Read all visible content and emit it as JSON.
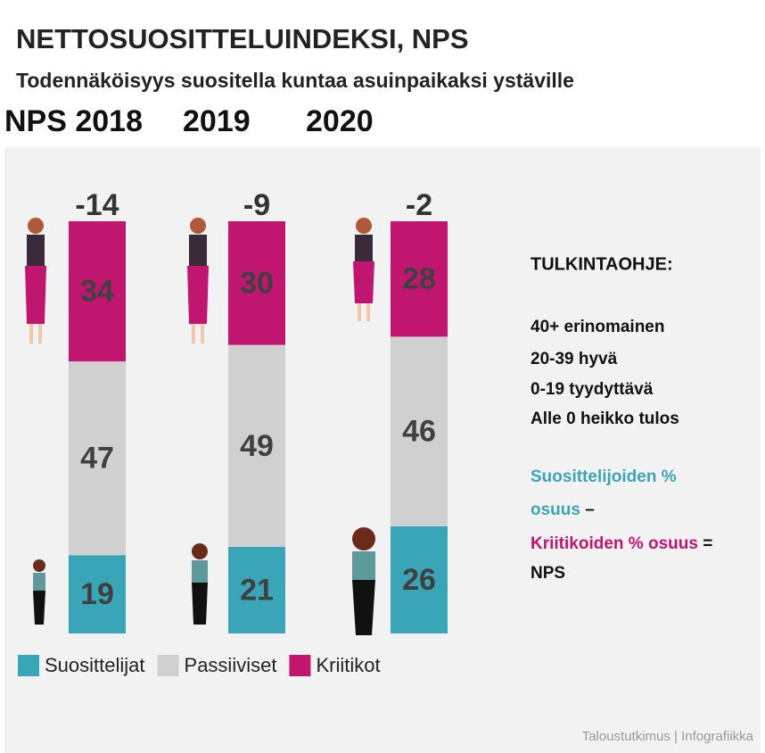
{
  "chart_data": {
    "type": "stacked_bar",
    "title": "NETTOSUOSITTELUINDEKSI, NPS",
    "subtitle": "Todennäköisyys suositella kuntaa asuinpaikaksi ystäville",
    "categories": [
      "NPS 2018",
      "2019",
      "2020"
    ],
    "series": [
      {
        "name": "Suosittelijat",
        "color": "#3ba5b8",
        "values": [
          19,
          21,
          26
        ]
      },
      {
        "name": "Passiiviset",
        "color": "#d0d0d0",
        "values": [
          47,
          49,
          46
        ]
      },
      {
        "name": "Kriitikot",
        "color": "#c0166f",
        "values": [
          34,
          30,
          28
        ]
      }
    ],
    "nps": [
      -14,
      -9,
      -2
    ],
    "ylim": [
      0,
      100
    ],
    "legend": "bottom-left"
  },
  "guide": {
    "title": "TULKINTAOHJE:",
    "scale": [
      "40+ erinomainen",
      "20-39 hyvä",
      "0-19 tyydyttävä",
      "Alle 0 heikko tulos"
    ],
    "formula": {
      "promoters": "Suosittelijoiden %",
      "promoters_2": "osuus",
      "minus": " –",
      "critics": "Kriitikoiden % osuus",
      "equals": " =",
      "result": "NPS"
    }
  },
  "footer": "Taloustutkimus | Infografiikka"
}
